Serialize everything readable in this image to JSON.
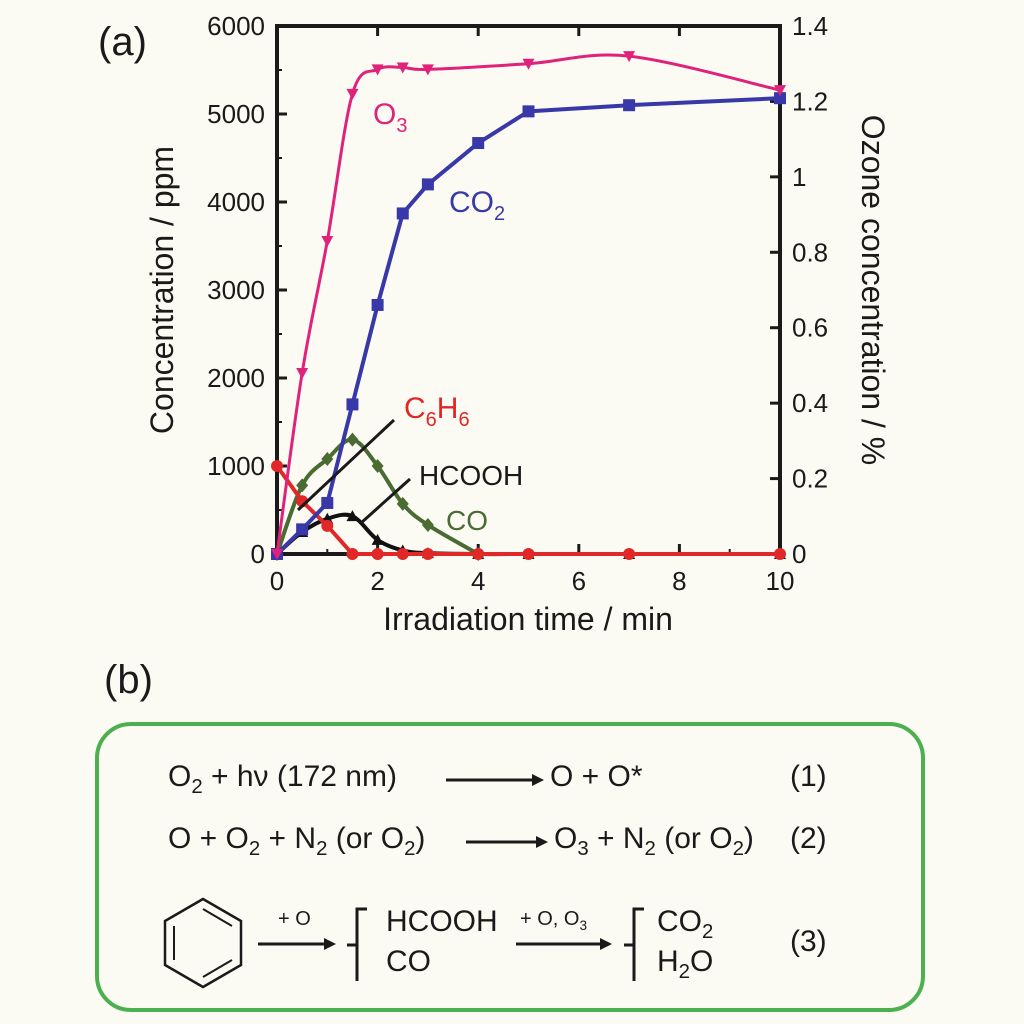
{
  "panel_a_label": "(a)",
  "panel_b_label": "(b)",
  "colors": {
    "O3": "#e0227a",
    "CO2": "#3838a8",
    "C6H6": "#e02828",
    "HCOOH": "#111111",
    "CO": "#4a6b32",
    "box_border": "#4caf50"
  },
  "chart_data": {
    "type": "line",
    "xlabel": "Irradiation time / min",
    "ylabel": "Concentration / ppm",
    "y2label": "Ozone concentration / %",
    "xlim": [
      0,
      10
    ],
    "ylim": [
      0,
      6000
    ],
    "y2lim": [
      0,
      1.4
    ],
    "xticks": [
      "0",
      "2",
      "4",
      "6",
      "8",
      "10"
    ],
    "yticks": [
      "0",
      "1000",
      "2000",
      "3000",
      "4000",
      "5000",
      "6000"
    ],
    "y2ticks": [
      "0",
      "0.2",
      "0.4",
      "0.6",
      "0.8",
      "1",
      "1.2",
      "1.4"
    ],
    "series": [
      {
        "key": "O3",
        "name": "O3",
        "axis": "right",
        "marker": "triangle-down",
        "x": [
          0,
          0.5,
          1,
          1.5,
          2,
          2.5,
          3,
          5,
          7,
          10
        ],
        "y": [
          0,
          0.48,
          0.83,
          1.22,
          1.285,
          1.29,
          1.285,
          1.3,
          1.32,
          1.23
        ]
      },
      {
        "key": "CO2",
        "name": "CO2",
        "axis": "left",
        "marker": "square",
        "x": [
          0,
          0.5,
          1,
          1.5,
          2,
          2.5,
          3,
          4,
          5,
          7,
          10
        ],
        "y": [
          0,
          280,
          580,
          1700,
          2830,
          3870,
          4200,
          4670,
          5030,
          5100,
          5180
        ]
      },
      {
        "key": "C6H6",
        "name": "C6H6",
        "axis": "left",
        "marker": "circle",
        "x": [
          0,
          0.5,
          1,
          1.5,
          2,
          2.5,
          3,
          4,
          5,
          7,
          10
        ],
        "y": [
          1000,
          600,
          320,
          0,
          0,
          0,
          0,
          0,
          0,
          0,
          0
        ]
      },
      {
        "key": "HCOOH",
        "name": "HCOOH",
        "axis": "left",
        "marker": "triangle-up",
        "x": [
          0,
          0.5,
          1,
          1.5,
          2,
          2.5,
          3,
          4,
          5,
          7,
          10
        ],
        "y": [
          0,
          250,
          400,
          430,
          160,
          40,
          10,
          0,
          0,
          0,
          0
        ]
      },
      {
        "key": "CO",
        "name": "CO",
        "axis": "left",
        "marker": "diamond",
        "x": [
          0,
          0.5,
          1,
          1.5,
          2,
          2.5,
          3,
          4
        ],
        "y": [
          0,
          780,
          1080,
          1300,
          1000,
          570,
          330,
          0
        ]
      }
    ],
    "annotations": {
      "O3": {
        "base": "O",
        "sub": "3"
      },
      "CO2": {
        "base": "CO",
        "sub": "2"
      },
      "C6H6": {
        "p1": "C",
        "s1": "6",
        "p2": "H",
        "s2": "6"
      },
      "HCOOH": "HCOOH",
      "CO": "CO"
    }
  },
  "reactions": {
    "eq1": {
      "lhs_o": "O",
      "lhs_sub": "2",
      "lhs_rest": " + hν (172 nm)",
      "rhs": "O + O*",
      "number": "(1)"
    },
    "eq2": {
      "lhs_a": "O + O",
      "lhs_sub1": "2",
      "lhs_b": " + N",
      "lhs_sub2": "2",
      "lhs_c": " (or O",
      "lhs_sub3": "2",
      "lhs_d": ")",
      "rhs_a": "O",
      "rhs_sub1": "3",
      "rhs_b": " + N",
      "rhs_sub2": "2",
      "rhs_c": " (or O",
      "rhs_sub3": "2",
      "rhs_d": ")",
      "number": "(2)"
    },
    "eq3": {
      "arrow1_label": "+ O",
      "inter1": "HCOOH",
      "inter2": "CO",
      "arrow2_label_a": "+ O, O",
      "arrow2_label_sub": "3",
      "prod1_base": "CO",
      "prod1_sub": "2",
      "prod2_a": "H",
      "prod2_sub": "2",
      "prod2_b": "O",
      "number": "(3)"
    }
  }
}
